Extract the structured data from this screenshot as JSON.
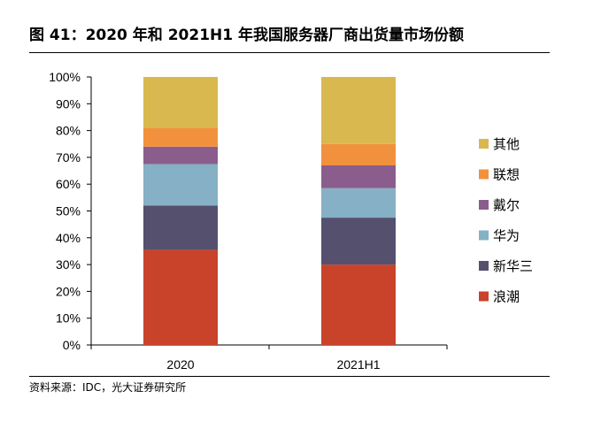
{
  "header": {
    "title": "图 41：2020 年和 2021H1 年我国服务器厂商出货量市场份额",
    "source": "资料来源：IDC，光大证券研究所"
  },
  "chart_data": {
    "type": "bar",
    "stacked": true,
    "percent": true,
    "categories": [
      "2020",
      "2021H1"
    ],
    "series": [
      {
        "name": "浪潮",
        "color": "#c8432a",
        "values": [
          35.5,
          30
        ]
      },
      {
        "name": "新华三",
        "color": "#54506e",
        "values": [
          16.5,
          17.5
        ]
      },
      {
        "name": "华为",
        "color": "#86b0c5",
        "values": [
          15.5,
          11
        ]
      },
      {
        "name": "戴尔",
        "color": "#8b5d8d",
        "values": [
          6.5,
          8.5
        ]
      },
      {
        "name": "联想",
        "color": "#f2913d",
        "values": [
          7,
          8
        ]
      },
      {
        "name": "其他",
        "color": "#d9b850",
        "values": [
          19,
          25
        ]
      }
    ],
    "ylim": [
      0,
      100
    ],
    "yticks": [
      "0%",
      "10%",
      "20%",
      "30%",
      "40%",
      "50%",
      "60%",
      "70%",
      "80%",
      "90%",
      "100%"
    ],
    "legend_position": "right",
    "grid": false
  }
}
